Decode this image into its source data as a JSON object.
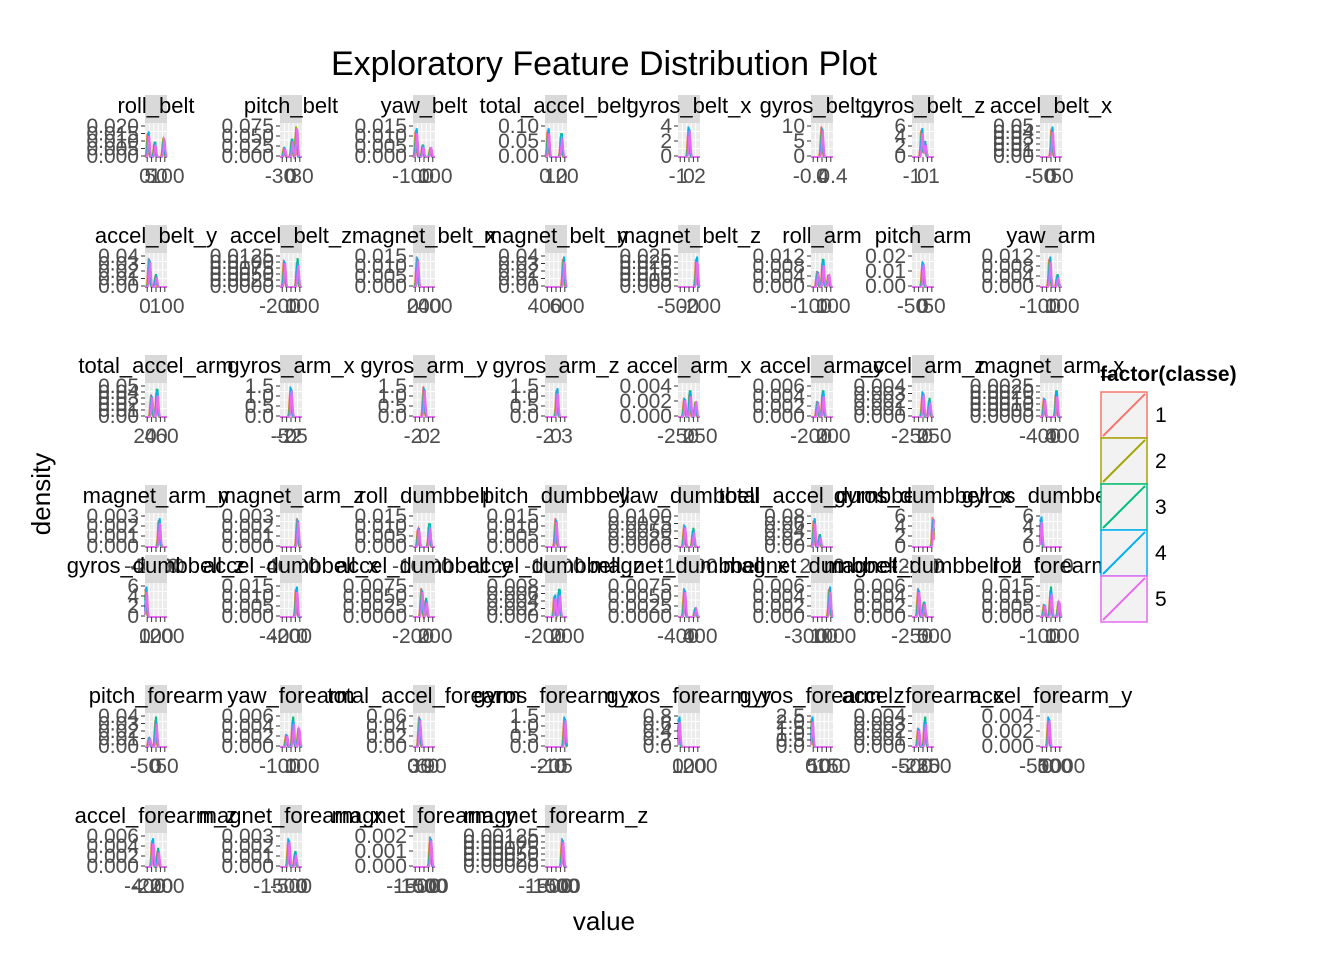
{
  "chart_data": {
    "type": "line",
    "title": "Exploratory Feature Distribution Plot",
    "xlabel": "value",
    "ylabel": "density",
    "legend": {
      "title": "factor(classe)",
      "position": "right",
      "entries": [
        "1",
        "2",
        "3",
        "4",
        "5"
      ],
      "colors": [
        "#F8766D",
        "#A3A500",
        "#00BF7D",
        "#00B0F6",
        "#E76BF3"
      ]
    },
    "grid": true,
    "panels": [
      {
        "name": "roll_belt",
        "yticks": [
          "0.020",
          "0.015",
          "0.010",
          "0.005",
          "0.000"
        ],
        "xticks": [
          "0",
          "50",
          "100"
        ],
        "peaks": [
          [
            0.15,
            0.8
          ],
          [
            0.45,
            0.5
          ],
          [
            0.85,
            0.6
          ]
        ]
      },
      {
        "name": "pitch_belt",
        "yticks": [
          "0.075",
          "0.050",
          "0.025",
          "0.000"
        ],
        "xticks": [
          "-30",
          "0",
          "30"
        ],
        "peaks": [
          [
            0.2,
            0.3
          ],
          [
            0.55,
            0.6
          ],
          [
            0.75,
            0.95
          ]
        ]
      },
      {
        "name": "yaw_belt",
        "yticks": [
          "0.015",
          "0.010",
          "0.005",
          "0.000"
        ],
        "xticks": [
          "-100",
          "0",
          "100"
        ],
        "peaks": [
          [
            0.15,
            0.9
          ],
          [
            0.45,
            0.4
          ],
          [
            0.8,
            0.3
          ]
        ]
      },
      {
        "name": "total_accel_belt",
        "yticks": [
          "0.10",
          "0.05",
          "0.00"
        ],
        "xticks": [
          "0",
          "10",
          "20"
        ],
        "peaks": [
          [
            0.15,
            0.9
          ],
          [
            0.75,
            0.8
          ]
        ]
      },
      {
        "name": "gyros_belt_x",
        "yticks": [
          "4",
          "2",
          "0"
        ],
        "xticks": [
          "-1",
          "0",
          "2"
        ],
        "peaks": [
          [
            0.5,
            0.95
          ]
        ]
      },
      {
        "name": "gyros_belt_y",
        "yticks": [
          "10",
          "5",
          "0"
        ],
        "xticks": [
          "-0.4",
          "0",
          "0.4"
        ],
        "peaks": [
          [
            0.5,
            0.95
          ]
        ]
      },
      {
        "name": "gyros_belt_z",
        "yticks": [
          "6",
          "4",
          "2",
          "0"
        ],
        "xticks": [
          "-1",
          "0",
          "1"
        ],
        "peaks": [
          [
            0.45,
            0.9
          ],
          [
            0.6,
            0.5
          ]
        ]
      },
      {
        "name": "accel_belt_x",
        "yticks": [
          "0.05",
          "0.04",
          "0.03",
          "0.02",
          "0.01",
          "0.00"
        ],
        "xticks": [
          "-50",
          "0",
          "50"
        ],
        "peaks": [
          [
            0.55,
            0.95
          ]
        ]
      },
      {
        "name": "accel_belt_y",
        "yticks": [
          "0.04",
          "0.03",
          "0.02",
          "0.01",
          "0.00"
        ],
        "xticks": [
          "0",
          "100"
        ],
        "peaks": [
          [
            0.2,
            0.9
          ],
          [
            0.5,
            0.4
          ]
        ]
      },
      {
        "name": "accel_belt_z",
        "yticks": [
          "0.0125",
          "0.0100",
          "0.0075",
          "0.0050",
          "0.0025",
          "0.0000"
        ],
        "xticks": [
          "-200",
          "0",
          "100"
        ],
        "peaks": [
          [
            0.2,
            0.85
          ],
          [
            0.8,
            0.9
          ]
        ]
      },
      {
        "name": "magnet_belt_x",
        "yticks": [
          "0.015",
          "0.010",
          "0.005",
          "0.000"
        ],
        "xticks": [
          "0",
          "200",
          "400"
        ],
        "peaks": [
          [
            0.2,
            0.95
          ]
        ]
      },
      {
        "name": "magnet_belt_y",
        "yticks": [
          "0.04",
          "0.03",
          "0.02",
          "0.01",
          "0.00"
        ],
        "xticks": [
          "400",
          "600"
        ],
        "peaks": [
          [
            0.85,
            0.95
          ]
        ]
      },
      {
        "name": "magnet_belt_z",
        "yticks": [
          "0.025",
          "0.020",
          "0.015",
          "0.010",
          "0.005",
          "0.000"
        ],
        "xticks": [
          "-500",
          "-200"
        ],
        "peaks": [
          [
            0.85,
            0.95
          ]
        ]
      },
      {
        "name": "roll_arm",
        "yticks": [
          "0.012",
          "0.008",
          "0.004",
          "0.000"
        ],
        "xticks": [
          "-100",
          "0",
          "100"
        ],
        "peaks": [
          [
            0.3,
            0.5
          ],
          [
            0.55,
            0.95
          ],
          [
            0.8,
            0.4
          ]
        ]
      },
      {
        "name": "pitch_arm",
        "yticks": [
          "0.02",
          "0.01",
          "0.00"
        ],
        "xticks": [
          "-50",
          "0",
          "50"
        ],
        "peaks": [
          [
            0.5,
            0.8
          ]
        ]
      },
      {
        "name": "yaw_arm",
        "yticks": [
          "0.012",
          "0.008",
          "0.004",
          "0.000"
        ],
        "xticks": [
          "-100",
          "0",
          "100"
        ],
        "peaks": [
          [
            0.45,
            0.95
          ],
          [
            0.8,
            0.4
          ]
        ]
      },
      {
        "name": "total_accel_arm",
        "yticks": [
          "0.05",
          "0.04",
          "0.03",
          "0.02",
          "0.01",
          "0.00"
        ],
        "xticks": [
          "20",
          "40",
          "60"
        ],
        "peaks": [
          [
            0.3,
            0.7
          ],
          [
            0.55,
            0.95
          ]
        ]
      },
      {
        "name": "gyros_arm_x",
        "yticks": [
          "1.5",
          "1.0",
          "0.5",
          "0.0"
        ],
        "xticks": [
          "-5",
          "-2",
          "0",
          "2",
          "5"
        ],
        "peaks": [
          [
            0.5,
            0.95
          ]
        ]
      },
      {
        "name": "gyros_arm_y",
        "yticks": [
          "1.5",
          "1.0",
          "0.5",
          "0.0"
        ],
        "xticks": [
          "-2",
          "0",
          "2"
        ],
        "peaks": [
          [
            0.5,
            0.95
          ]
        ]
      },
      {
        "name": "gyros_arm_z",
        "yticks": [
          "1.5",
          "1.0",
          "0.5",
          "0.0"
        ],
        "xticks": [
          "-2",
          "0",
          "3"
        ],
        "peaks": [
          [
            0.55,
            0.9
          ]
        ]
      },
      {
        "name": "accel_arm_x",
        "yticks": [
          "0.004",
          "0.002",
          "0.000"
        ],
        "xticks": [
          "-250",
          "0",
          "250"
        ],
        "peaks": [
          [
            0.3,
            0.6
          ],
          [
            0.55,
            0.9
          ],
          [
            0.8,
            0.5
          ]
        ]
      },
      {
        "name": "accel_arm_y",
        "yticks": [
          "0.006",
          "0.004",
          "0.002",
          "0.000"
        ],
        "xticks": [
          "-200",
          "0",
          "200"
        ],
        "peaks": [
          [
            0.3,
            0.5
          ],
          [
            0.55,
            0.9
          ]
        ]
      },
      {
        "name": "accel_arm_z",
        "yticks": [
          "0.004",
          "0.003",
          "0.002",
          "0.001",
          "0.000"
        ],
        "xticks": [
          "-250",
          "0",
          "250"
        ],
        "peaks": [
          [
            0.5,
            0.8
          ],
          [
            0.8,
            0.6
          ]
        ]
      },
      {
        "name": "magnet_arm_x",
        "yticks": [
          "0.0025",
          "0.0020",
          "0.0015",
          "0.0010",
          "0.0005",
          "0.0000"
        ],
        "xticks": [
          "-400",
          "0",
          "400"
        ],
        "peaks": [
          [
            0.2,
            0.6
          ],
          [
            0.75,
            0.9
          ]
        ]
      },
      {
        "name": "magnet_arm_y",
        "yticks": [
          "0.003",
          "0.002",
          "0.001",
          "0.000"
        ],
        "xticks": [
          "-400",
          "-200",
          "0",
          "200",
          "400"
        ],
        "peaks": [
          [
            0.65,
            0.9
          ]
        ]
      },
      {
        "name": "magnet_arm_z",
        "yticks": [
          "0.003",
          "0.002",
          "0.001",
          "0.000"
        ],
        "xticks": [
          "-400",
          "0",
          "400"
        ],
        "peaks": [
          [
            0.8,
            0.9
          ]
        ]
      },
      {
        "name": "roll_dumbbell",
        "yticks": [
          "0.015",
          "0.010",
          "0.005",
          "0.000"
        ],
        "xticks": [
          "-100",
          "0",
          "100"
        ],
        "peaks": [
          [
            0.25,
            0.6
          ],
          [
            0.75,
            0.8
          ]
        ]
      },
      {
        "name": "pitch_dumbbell",
        "yticks": [
          "0.015",
          "0.010",
          "0.005",
          "0.000"
        ],
        "xticks": [
          "-100",
          "0",
          "100"
        ],
        "peaks": [
          [
            0.5,
            0.9
          ]
        ]
      },
      {
        "name": "yaw_dumbbell",
        "yticks": [
          "0.0100",
          "0.0075",
          "0.0050",
          "0.0025",
          "0.0000"
        ],
        "xticks": [
          "-100",
          "0",
          "100"
        ],
        "peaks": [
          [
            0.3,
            0.7
          ],
          [
            0.7,
            0.6
          ]
        ]
      },
      {
        "name": "total_accel_dumbbell",
        "yticks": [
          "0.08",
          "0.06",
          "0.04",
          "0.02",
          "0.00"
        ],
        "xticks": [
          "20",
          "40",
          "60"
        ],
        "peaks": [
          [
            0.15,
            0.9
          ],
          [
            0.4,
            0.4
          ]
        ]
      },
      {
        "name": "gyros_dumbbell_x",
        "yticks": [
          "6",
          "4",
          "2",
          "0"
        ],
        "xticks": [
          "-200",
          "-100",
          "0"
        ],
        "peaks": [
          [
            0.97,
            0.95
          ]
        ]
      },
      {
        "name": "gyros_dumbbell_y",
        "yticks": [
          "6",
          "4",
          "2",
          "0"
        ],
        "xticks": [
          "0",
          "20"
        ],
        "peaks": [
          [
            0.05,
            0.95
          ]
        ]
      },
      {
        "name": "gyros_dumbbell_z",
        "yticks": [
          "6",
          "4",
          "2",
          "0"
        ],
        "xticks": [
          "0",
          "100",
          "200"
        ],
        "peaks": [
          [
            0.05,
            0.95
          ]
        ]
      },
      {
        "name": "accel_dumbbell_x",
        "yticks": [
          "0.015",
          "0.010",
          "0.005",
          "0.000"
        ],
        "xticks": [
          "-400",
          "-200",
          "0"
        ],
        "peaks": [
          [
            0.75,
            0.95
          ]
        ]
      },
      {
        "name": "accel_dumbbell_y",
        "yticks": [
          "0.0075",
          "0.0050",
          "0.0025",
          "0.0000"
        ],
        "xticks": [
          "-200",
          "0",
          "200"
        ],
        "peaks": [
          [
            0.4,
            0.9
          ],
          [
            0.6,
            0.6
          ]
        ]
      },
      {
        "name": "accel_dumbbell_z",
        "yticks": [
          "0.008",
          "0.006",
          "0.004",
          "0.002",
          "0.000"
        ],
        "xticks": [
          "-200",
          "0",
          "200"
        ],
        "peaks": [
          [
            0.45,
            0.7
          ],
          [
            0.65,
            0.95
          ]
        ]
      },
      {
        "name": "magnet_dumbbell_x",
        "yticks": [
          "0.0075",
          "0.0050",
          "0.0025",
          "0.0000"
        ],
        "xticks": [
          "-400",
          "0",
          "400"
        ],
        "peaks": [
          [
            0.3,
            0.9
          ],
          [
            0.8,
            0.3
          ]
        ]
      },
      {
        "name": "magnet_dumbbell_y",
        "yticks": [
          "0.006",
          "0.004",
          "0.002",
          "0.000"
        ],
        "xticks": [
          "-3000",
          "0",
          "1000"
        ],
        "peaks": [
          [
            0.85,
            0.95
          ]
        ]
      },
      {
        "name": "magnet_dumbbell_z",
        "yticks": [
          "0.006",
          "0.004",
          "0.002",
          "0.000"
        ],
        "xticks": [
          "-250",
          "0",
          "500"
        ],
        "peaks": [
          [
            0.3,
            0.9
          ],
          [
            0.55,
            0.5
          ]
        ]
      },
      {
        "name": "roll_forearm",
        "yticks": [
          "0.015",
          "0.010",
          "0.005",
          "0.000"
        ],
        "xticks": [
          "-100",
          "0",
          "100"
        ],
        "peaks": [
          [
            0.2,
            0.4
          ],
          [
            0.5,
            0.95
          ],
          [
            0.85,
            0.5
          ]
        ]
      },
      {
        "name": "pitch_forearm",
        "yticks": [
          "0.04",
          "0.03",
          "0.02",
          "0.01",
          "0.00"
        ],
        "xticks": [
          "-50",
          "0",
          "50"
        ],
        "peaks": [
          [
            0.2,
            0.3
          ],
          [
            0.5,
            0.95
          ]
        ]
      },
      {
        "name": "yaw_forearm",
        "yticks": [
          "0.006",
          "0.004",
          "0.002",
          "0.000"
        ],
        "xticks": [
          "-100",
          "0",
          "100"
        ],
        "peaks": [
          [
            0.3,
            0.4
          ],
          [
            0.6,
            0.95
          ],
          [
            0.85,
            0.6
          ]
        ]
      },
      {
        "name": "total_accel_forearm",
        "yticks": [
          "0.06",
          "0.04",
          "0.02",
          "0.00"
        ],
        "xticks": [
          "0",
          "30",
          "60",
          "90"
        ],
        "peaks": [
          [
            0.3,
            0.95
          ]
        ]
      },
      {
        "name": "gyros_forearm_x",
        "yticks": [
          "1.5",
          "1.0",
          "0.5",
          "0.0"
        ],
        "xticks": [
          "-20",
          "-10",
          "0",
          "5"
        ],
        "peaks": [
          [
            0.9,
            0.95
          ]
        ]
      },
      {
        "name": "gyros_forearm_y",
        "yticks": [
          "0.8",
          "0.6",
          "0.4",
          "0.2",
          "0.0"
        ],
        "xticks": [
          "0",
          "100",
          "200"
        ],
        "peaks": [
          [
            0.05,
            0.95
          ]
        ]
      },
      {
        "name": "gyros_forearm_z",
        "yticks": [
          "2.5",
          "2.0",
          "1.5",
          "1.0",
          "0.5",
          "0.0"
        ],
        "xticks": [
          "0",
          "50",
          "100",
          "150"
        ],
        "peaks": [
          [
            0.05,
            0.95
          ]
        ]
      },
      {
        "name": "accel_forearm_x",
        "yticks": [
          "0.004",
          "0.003",
          "0.002",
          "0.001",
          "0.000"
        ],
        "xticks": [
          "-500",
          "-250",
          "0",
          "250"
        ],
        "peaks": [
          [
            0.3,
            0.6
          ],
          [
            0.6,
            0.95
          ]
        ]
      },
      {
        "name": "accel_forearm_y",
        "yticks": [
          "0.004",
          "0.002",
          "0.000"
        ],
        "xticks": [
          "-500",
          "0",
          "500",
          "1000"
        ],
        "peaks": [
          [
            0.4,
            0.95
          ]
        ]
      },
      {
        "name": "accel_forearm_z",
        "yticks": [
          "0.006",
          "0.004",
          "0.002",
          "0.000"
        ],
        "xticks": [
          "-400",
          "-200",
          "0",
          "200"
        ],
        "peaks": [
          [
            0.35,
            0.9
          ],
          [
            0.6,
            0.6
          ]
        ]
      },
      {
        "name": "magnet_forearm_x",
        "yticks": [
          "0.003",
          "0.002",
          "0.001",
          "0.000"
        ],
        "xticks": [
          "-1500",
          "-500",
          "0"
        ],
        "peaks": [
          [
            0.4,
            0.9
          ],
          [
            0.7,
            0.5
          ]
        ]
      },
      {
        "name": "magnet_forearm_y",
        "yticks": [
          "0.002",
          "0.001",
          "0.000"
        ],
        "xticks": [
          "-1500",
          "-1000",
          "-500",
          "0"
        ],
        "peaks": [
          [
            0.8,
            0.95
          ]
        ]
      },
      {
        "name": "magnet_forearm_z",
        "yticks": [
          "0.00125",
          "0.00100",
          "0.00075",
          "0.00050",
          "0.00025",
          "0.00000"
        ],
        "xticks": [
          "-1500",
          "-1000",
          "-500",
          "0"
        ],
        "peaks": [
          [
            0.8,
            0.9
          ]
        ]
      }
    ]
  }
}
